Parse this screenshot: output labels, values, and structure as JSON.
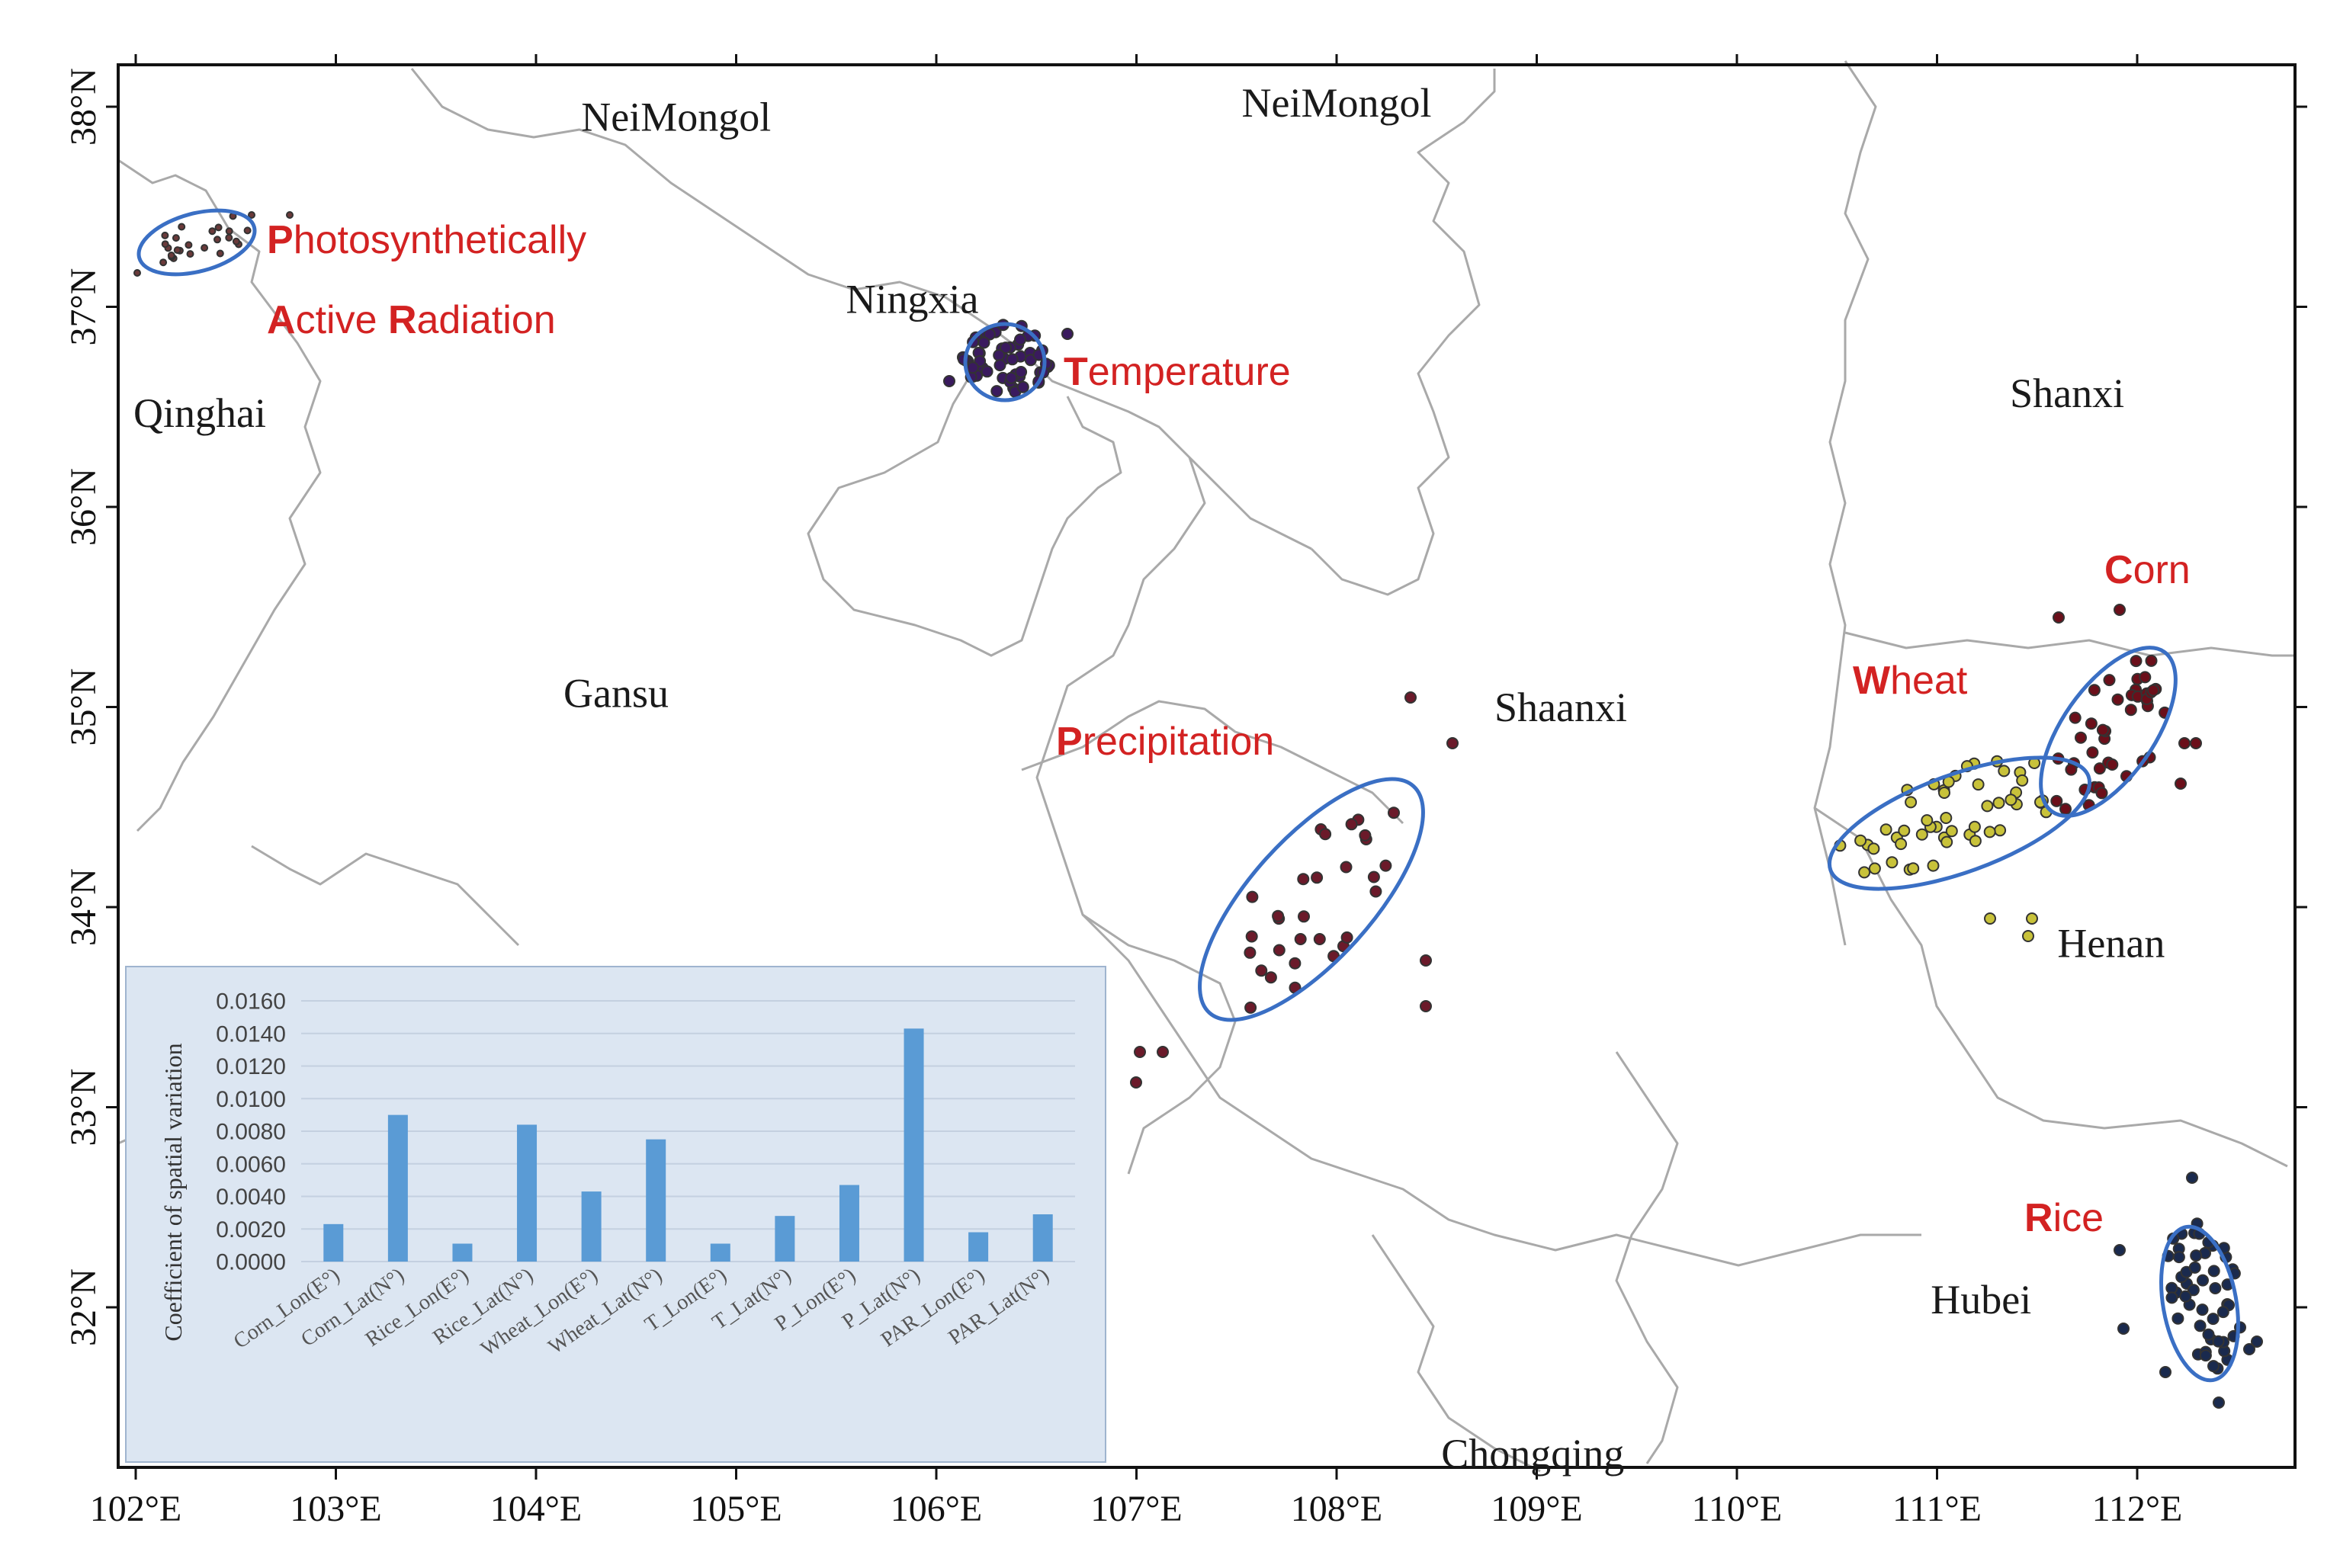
{
  "map": {
    "x_ticks": [
      "102°E",
      "103°E",
      "104°E",
      "105°E",
      "106°E",
      "107°E",
      "108°E",
      "109°E",
      "110°E",
      "111°E",
      "112°E"
    ],
    "y_ticks": [
      "38°N",
      "37°N",
      "36°N",
      "35°N",
      "34°N",
      "33°N",
      "32°N"
    ],
    "regions": [
      {
        "id": "neimongol-1",
        "label": "NeiMongol",
        "lon": 104.7,
        "lat": 37.88
      },
      {
        "id": "neimongol-2",
        "label": "NeiMongol",
        "lon": 108.0,
        "lat": 37.95
      },
      {
        "id": "qinghai",
        "label": "Qinghai",
        "lon": 102.32,
        "lat": 36.4
      },
      {
        "id": "ningxia",
        "label": "Ningxia",
        "lon": 105.88,
        "lat": 36.97
      },
      {
        "id": "gansu",
        "label": "Gansu",
        "lon": 104.4,
        "lat": 35.0
      },
      {
        "id": "shaanxi",
        "label": "Shaanxi",
        "lon": 109.12,
        "lat": 34.93
      },
      {
        "id": "shanxi",
        "label": "Shanxi",
        "lon": 111.65,
        "lat": 36.5
      },
      {
        "id": "henan",
        "label": "Henan",
        "lon": 111.87,
        "lat": 33.75
      },
      {
        "id": "hubei",
        "label": "Hubei",
        "lon": 111.22,
        "lat": 31.97
      },
      {
        "id": "chongqing",
        "label": "Chongqing",
        "lon": 108.98,
        "lat": 31.2
      }
    ],
    "factors": [
      {
        "id": "par",
        "initials": [
          "P",
          "A",
          "R"
        ],
        "rests": [
          "hotosynthetically",
          "ctive ",
          "adiation"
        ],
        "line1": [
          0,
          1
        ],
        "line2": [
          1,
          2
        ]
      },
      {
        "id": "temperature",
        "initial": "T",
        "rest": "emperature"
      },
      {
        "id": "precipitation",
        "initial": "P",
        "rest": "recipitation"
      },
      {
        "id": "wheat",
        "initial": "W",
        "rest": "heat"
      },
      {
        "id": "corn",
        "initial": "C",
        "rest": "orn"
      },
      {
        "id": "rice",
        "initial": "R",
        "rest": "ice"
      }
    ],
    "colors": {
      "factor_label": "#d32222",
      "ellipse_stroke": "#3a6fc4",
      "par_points": "#6b3a3a",
      "temperature_points": "#3a1a5e",
      "precipitation_points": "#6b1a2a",
      "wheat_points": "#c8c23a",
      "corn_points": "#6b0f1a",
      "rice_points": "#1a2a4e",
      "boundary": "#a9a9a9"
    }
  },
  "inset": {
    "ylabel": "Coefficient of spatial variation",
    "y_ticks": [
      "0.0160",
      "0.0140",
      "0.0120",
      "0.0100",
      "0.0080",
      "0.0060",
      "0.0040",
      "0.0020",
      "0.0000"
    ],
    "bar_color": "#5a9bd5",
    "background": "#dce6f2"
  },
  "chart_data": {
    "type": "bar",
    "categories": [
      "Corn_Lon(E°)",
      "Corn_Lat(N°)",
      "Rice_Lon(E°)",
      "Rice_Lat(N°)",
      "Wheat_Lon(E°)",
      "Wheat_Lat(N°)",
      "T_Lon(E°)",
      "T_Lat(N°)",
      "P_Lon(E°)",
      "P_Lat(N°)",
      "PAR_Lon(E°)",
      "PAR_Lat(N°)"
    ],
    "values": [
      0.0023,
      0.009,
      0.0011,
      0.0084,
      0.0043,
      0.0075,
      0.0011,
      0.0028,
      0.0047,
      0.0143,
      0.0018,
      0.0029
    ],
    "ylabel": "Coefficient of spatial variation",
    "ylim": [
      0,
      0.016
    ]
  }
}
